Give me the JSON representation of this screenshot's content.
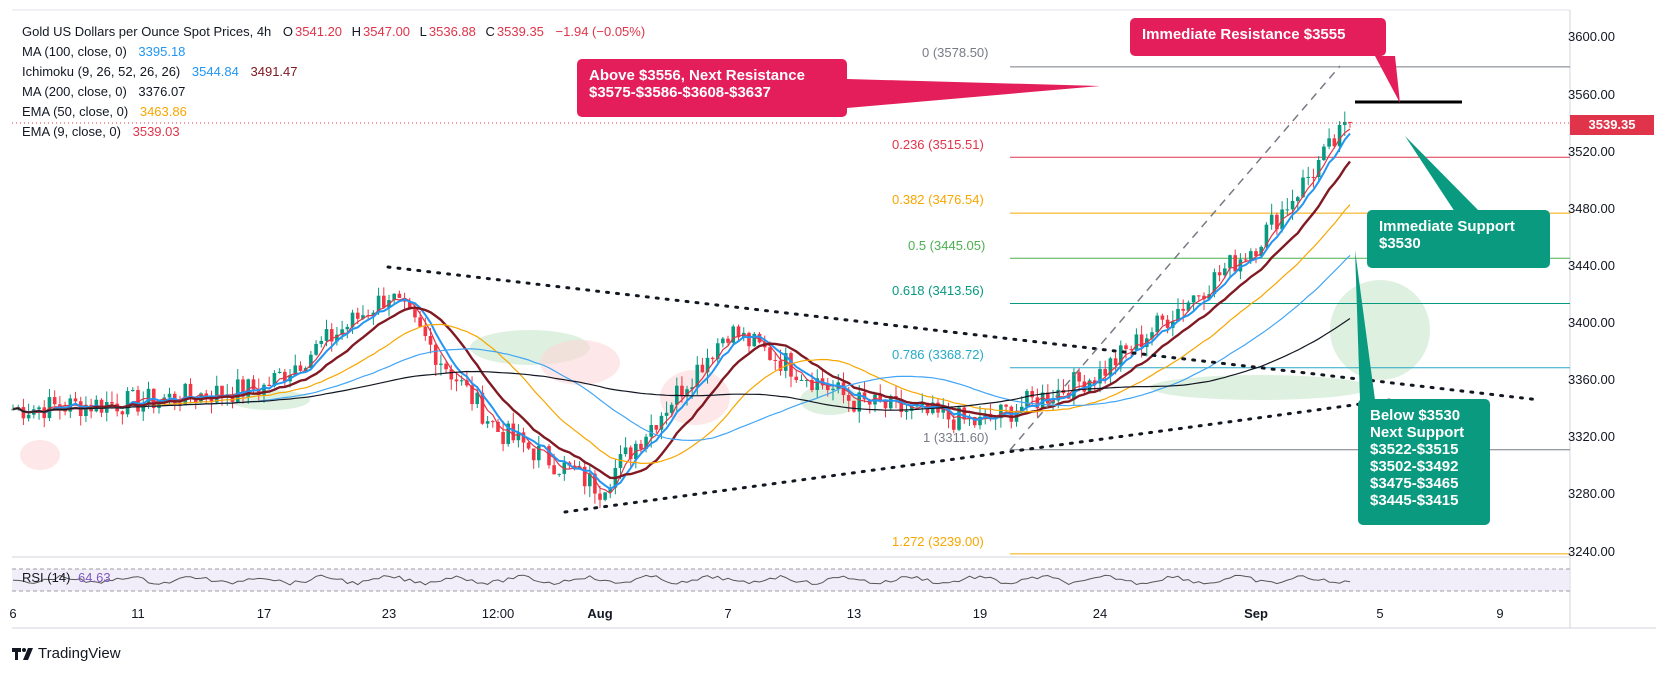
{
  "header": {
    "title": "Gold US Dollars per Ounce Spot Prices, 4h",
    "o_label": "O",
    "o_value": "3541.20",
    "h_label": "H",
    "h_value": "3547.00",
    "l_label": "L",
    "l_value": "3536.88",
    "c_label": "C",
    "c_value": "3539.35",
    "change": "−1.94 (−0.05%)",
    "indicators": [
      {
        "label": "MA (100, close, 0)",
        "value": "3395.18",
        "color": "#2196f3"
      },
      {
        "label": "Ichimoku (9, 26, 52, 26, 26)",
        "value": "3544.84",
        "value2": "3491.47",
        "color": "#2196f3",
        "color2": "#801922"
      },
      {
        "label": "MA (200, close, 0)",
        "value": "3376.07",
        "color": "#131722"
      },
      {
        "label": "EMA (50, close, 0)",
        "value": "3463.86",
        "color": "#f7a600"
      },
      {
        "label": "EMA (9, close, 0)",
        "value": "3539.03",
        "color": "#e0344a"
      }
    ]
  },
  "callouts": {
    "resistance_next": "Above $3556, Next Resistance\n$3575-$3586-$3608-$3637",
    "resistance_immediate": "Immediate Resistance $3555",
    "support_immediate": "Immediate Support\n$3530",
    "support_next": "Below $3530\nNext Support\n$3522-$3515\n$3502-$3492\n$3475-$3465\n$3445-$3415",
    "colors": {
      "resistance": "#e31e5a",
      "support": "#0a9a7f"
    }
  },
  "fib_levels": [
    {
      "ratio": "0",
      "price": "3578.50",
      "label": "0 (3578.50)",
      "color": "#787b86"
    },
    {
      "ratio": "0.236",
      "price": "3515.51",
      "label": "0.236 (3515.51)",
      "color": "#e0344a"
    },
    {
      "ratio": "0.382",
      "price": "3476.54",
      "label": "0.382 (3476.54)",
      "color": "#f7a600"
    },
    {
      "ratio": "0.5",
      "price": "3445.05",
      "label": "0.5 (3445.05)",
      "color": "#4caf50"
    },
    {
      "ratio": "0.618",
      "price": "3413.56",
      "label": "0.618 (3413.56)",
      "color": "#089981"
    },
    {
      "ratio": "0.786",
      "price": "3368.72",
      "label": "0.786 (3368.72)",
      "color": "#26a9c6"
    },
    {
      "ratio": "1",
      "price": "3311.60",
      "label": "1 (3311.60)",
      "color": "#787b86"
    },
    {
      "ratio": "1.272",
      "price": "3239.00",
      "label": "1.272 (3239.00)",
      "color": "#f7a600"
    }
  ],
  "price_axis": {
    "ticks": [
      "3600.00",
      "3560.00",
      "3520.00",
      "3480.00",
      "3440.00",
      "3400.00",
      "3360.00",
      "3320.00",
      "3280.00",
      "3240.00"
    ],
    "current_price": "3539.35"
  },
  "time_axis": {
    "ticks": [
      "6",
      "11",
      "17",
      "23",
      "12:00",
      "Aug",
      "7",
      "13",
      "19",
      "24",
      "Sep",
      "5",
      "9"
    ]
  },
  "rsi": {
    "label": "RSI (14)",
    "value": "64.63"
  },
  "brand": "TradingView",
  "chart_data": {
    "type": "line",
    "title": "Gold US Dollars per Ounce Spot Prices, 4h",
    "xlabel": "",
    "ylabel": "",
    "ylim": [
      3230,
      3610
    ],
    "grid": false,
    "legend": "top-left",
    "x": [
      "6",
      "11",
      "17",
      "23",
      "12:00",
      "Aug",
      "7",
      "13",
      "19",
      "24",
      "Sep",
      "5"
    ],
    "series": [
      {
        "name": "",
        "values": [
          3340,
          3345,
          3355,
          3420,
          3325,
          3285,
          3395,
          3345,
          3330,
          3365,
          3455,
          3539.35
        ]
      }
    ]
  }
}
